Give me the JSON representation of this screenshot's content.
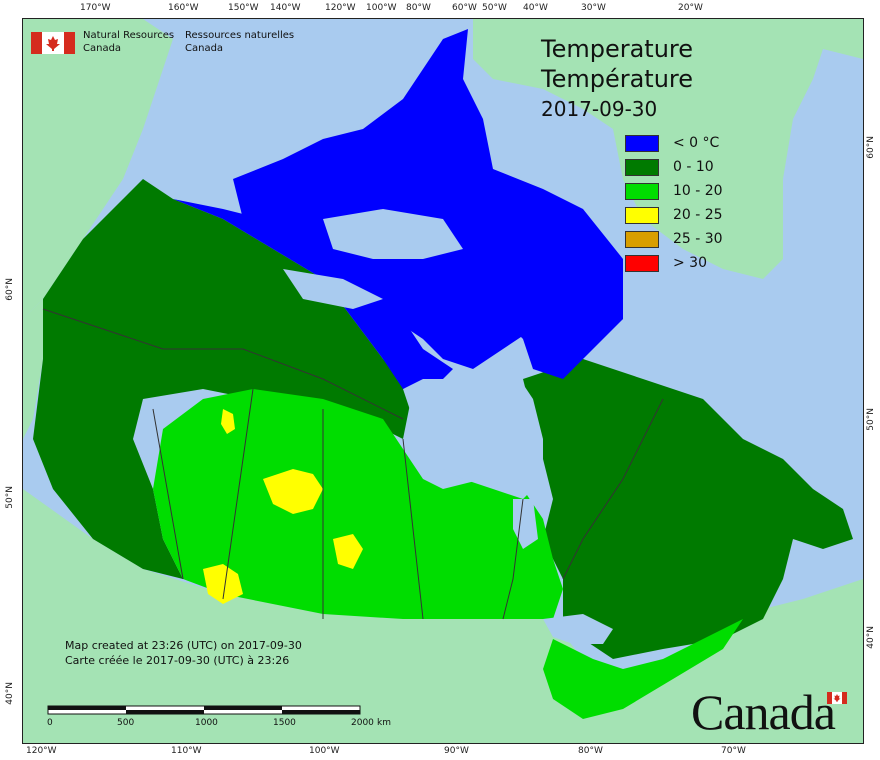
{
  "title": {
    "en": "Temperature",
    "fr": "Température",
    "date": "2017-09-30"
  },
  "agency": {
    "en_line1": "Natural Resources",
    "en_line2": "Canada",
    "fr_line1": "Ressources naturelles",
    "fr_line2": "Canada"
  },
  "legend": [
    {
      "label": "< 0 °C",
      "color": "#0000ff"
    },
    {
      "label": "0 - 10",
      "color": "#007a00"
    },
    {
      "label": "10 - 20",
      "color": "#00dd00"
    },
    {
      "label": "20 - 25",
      "color": "#ffff00"
    },
    {
      "label": "25 - 30",
      "color": "#d89e00"
    },
    {
      "label": "> 30",
      "color": "#ff0000"
    }
  ],
  "note": {
    "en": "Map created at 23:26 (UTC) on 2017-09-30",
    "fr": "Carte créée le 2017-09-30 (UTC) à 23:26"
  },
  "scale_bar": {
    "ticks": [
      "0",
      "500",
      "1000",
      "1500",
      "2000"
    ],
    "unit": "km"
  },
  "wordmark": "Canada",
  "graticule": {
    "top": [
      "170°W",
      "160°W",
      "150°W",
      "140°W",
      "120°W",
      "100°W",
      "80°W",
      "60°W",
      "50°W",
      "40°W",
      "30°W",
      "20°W"
    ],
    "bottom": [
      "120°W",
      "110°W",
      "100°W",
      "90°W",
      "80°W",
      "70°W"
    ],
    "left": [
      "60°N",
      "50°N",
      "40°N"
    ],
    "right": [
      "60°N",
      "50°N",
      "40°N"
    ]
  },
  "colors": {
    "water": "#a9cbef",
    "other_land": "#a4e3b4",
    "boundary": "#333333"
  }
}
